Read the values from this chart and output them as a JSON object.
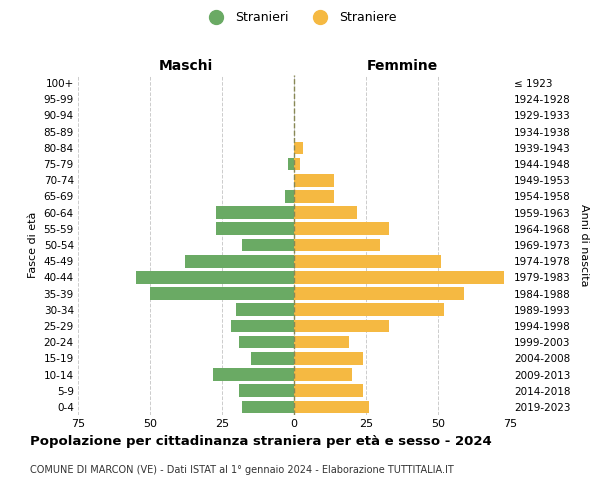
{
  "age_groups": [
    "0-4",
    "5-9",
    "10-14",
    "15-19",
    "20-24",
    "25-29",
    "30-34",
    "35-39",
    "40-44",
    "45-49",
    "50-54",
    "55-59",
    "60-64",
    "65-69",
    "70-74",
    "75-79",
    "80-84",
    "85-89",
    "90-94",
    "95-99",
    "100+"
  ],
  "birth_years": [
    "2019-2023",
    "2014-2018",
    "2009-2013",
    "2004-2008",
    "1999-2003",
    "1994-1998",
    "1989-1993",
    "1984-1988",
    "1979-1983",
    "1974-1978",
    "1969-1973",
    "1964-1968",
    "1959-1963",
    "1954-1958",
    "1949-1953",
    "1944-1948",
    "1939-1943",
    "1934-1938",
    "1929-1933",
    "1924-1928",
    "≤ 1923"
  ],
  "maschi": [
    18,
    19,
    28,
    15,
    19,
    22,
    20,
    50,
    55,
    38,
    18,
    27,
    27,
    3,
    0,
    2,
    0,
    0,
    0,
    0,
    0
  ],
  "femmine": [
    26,
    24,
    20,
    24,
    19,
    33,
    52,
    59,
    73,
    51,
    30,
    33,
    22,
    14,
    14,
    2,
    3,
    0,
    0,
    0,
    0
  ],
  "male_color": "#6aaa64",
  "female_color": "#f5b942",
  "background_color": "#ffffff",
  "grid_color": "#cccccc",
  "dashed_line_color": "#888855",
  "title": "Popolazione per cittadinanza straniera per età e sesso - 2024",
  "subtitle": "COMUNE DI MARCON (VE) - Dati ISTAT al 1° gennaio 2024 - Elaborazione TUTTITALIA.IT",
  "xlabel_left": "Maschi",
  "xlabel_right": "Femmine",
  "ylabel_left": "Fasce di età",
  "ylabel_right": "Anni di nascita",
  "xlim": 75,
  "legend_stranieri": "Stranieri",
  "legend_straniere": "Straniere"
}
